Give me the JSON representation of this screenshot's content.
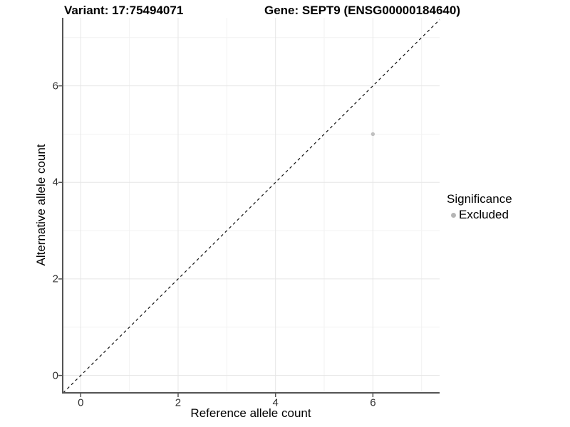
{
  "title": {
    "left": "Variant: 17:75494071",
    "right": "Gene: SEPT9 (ENSG00000184640)"
  },
  "chart_data": {
    "type": "scatter",
    "xlabel": "Reference allele count",
    "ylabel": "Alternative allele count",
    "xlim": [
      -0.37,
      7.37
    ],
    "ylim": [
      -0.36,
      7.41
    ],
    "xticks": [
      0,
      2,
      4,
      6
    ],
    "yticks": [
      0,
      2,
      4,
      6
    ],
    "minor_xticks": [
      1,
      3,
      5,
      7
    ],
    "minor_yticks": [
      1,
      3,
      5,
      7
    ],
    "grid": true,
    "series": [
      {
        "name": "Excluded",
        "color": "#c0c0c0",
        "points": [
          {
            "x": 6,
            "y": 5
          }
        ]
      }
    ],
    "reference_line": {
      "type": "identity",
      "dashed": true,
      "color": "#111111"
    },
    "legend": {
      "title": "Significance",
      "position": "right",
      "entries": [
        {
          "label": "Excluded",
          "color": "#b5b5b5"
        }
      ]
    }
  },
  "colors": {
    "background": "#ffffff",
    "grid_major": "#e6e6e6",
    "grid_minor": "#f2f2f2",
    "axis_line": "#545454",
    "tick_label": "#303030",
    "text": "#000000"
  }
}
